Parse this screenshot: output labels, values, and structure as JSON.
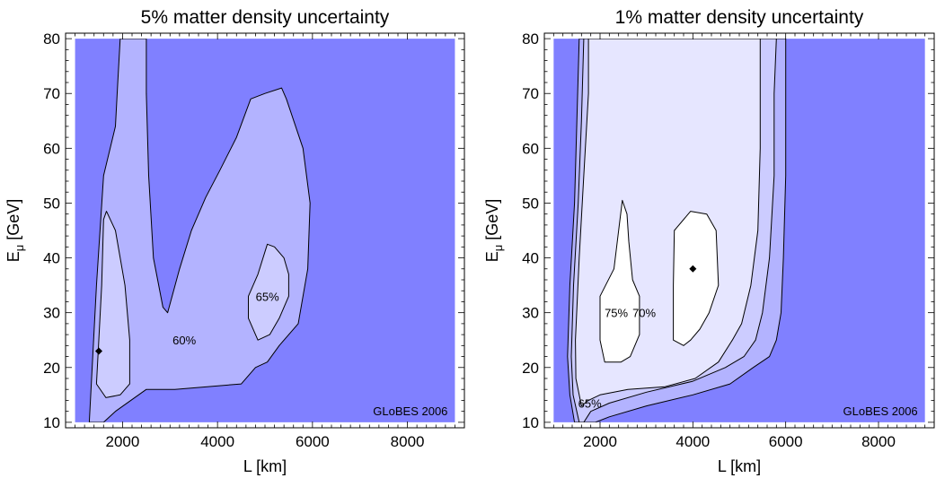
{
  "chart_data": [
    {
      "type": "contour",
      "title": "5% matter density uncertainty",
      "xlabel": "L [km]",
      "ylabel_main": "E",
      "ylabel_sub": "μ",
      "ylabel_unit": " [GeV]",
      "xlim": [
        800,
        9200
      ],
      "ylim": [
        9,
        81
      ],
      "xticks": [
        2000,
        4000,
        6000,
        8000
      ],
      "yticks": [
        10,
        20,
        30,
        40,
        50,
        60,
        70,
        80
      ],
      "x_minor_step": 200,
      "y_minor_step": 2,
      "plot_region": {
        "x": [
          1000,
          9000
        ],
        "y": [
          10,
          80
        ]
      },
      "background_color": "#8080ff",
      "watermark": "GLoBES 2006",
      "levels": [
        {
          "label": "60%",
          "fill": "#b3b3ff",
          "label_at": [
            3300,
            25
          ],
          "polygon": [
            [
              1300,
              10
            ],
            [
              1450,
              35
            ],
            [
              1600,
              55
            ],
            [
              1850,
              64
            ],
            [
              1900,
              72
            ],
            [
              1950,
              80
            ],
            [
              2500,
              80
            ],
            [
              2500,
              70
            ],
            [
              2550,
              55
            ],
            [
              2650,
              40
            ],
            [
              2850,
              31
            ],
            [
              2950,
              30
            ],
            [
              3200,
              38
            ],
            [
              3450,
              45
            ],
            [
              3750,
              51
            ],
            [
              4050,
              56
            ],
            [
              4400,
              62
            ],
            [
              4700,
              69
            ],
            [
              5000,
              70
            ],
            [
              5350,
              71
            ],
            [
              5450,
              69
            ],
            [
              5800,
              60
            ],
            [
              5950,
              50
            ],
            [
              5900,
              38
            ],
            [
              5700,
              28
            ],
            [
              5300,
              24
            ],
            [
              5050,
              21
            ],
            [
              4800,
              20
            ],
            [
              4500,
              17
            ],
            [
              3100,
              16
            ],
            [
              2500,
              16
            ],
            [
              1850,
              12
            ],
            [
              1600,
              10
            ]
          ]
        },
        {
          "label": "",
          "fill": "#ccccff",
          "label_at": null,
          "polygon": [
            [
              1450,
              17
            ],
            [
              1500,
              25
            ],
            [
              1560,
              35
            ],
            [
              1600,
              47
            ],
            [
              1660,
              48.5
            ],
            [
              1850,
              45
            ],
            [
              2050,
              35
            ],
            [
              2150,
              25
            ],
            [
              2150,
              17
            ],
            [
              1950,
              15
            ],
            [
              1650,
              14.5
            ]
          ]
        },
        {
          "label": "65%",
          "fill": "#ccccff",
          "label_at": [
            5050,
            33
          ],
          "polygon": [
            [
              4650,
              29
            ],
            [
              4650,
              33
            ],
            [
              4850,
              37
            ],
            [
              5050,
              42.5
            ],
            [
              5200,
              42
            ],
            [
              5400,
              40
            ],
            [
              5500,
              37
            ],
            [
              5500,
              33
            ],
            [
              5300,
              29
            ],
            [
              5100,
              26
            ],
            [
              4850,
              25
            ]
          ]
        }
      ],
      "best_fit_point": [
        1500,
        23
      ]
    },
    {
      "type": "contour",
      "title": "1% matter density uncertainty",
      "xlabel": "L [km]",
      "ylabel_main": "E",
      "ylabel_sub": "μ",
      "ylabel_unit": " [GeV]",
      "xlim": [
        800,
        9200
      ],
      "ylim": [
        9,
        81
      ],
      "xticks": [
        2000,
        4000,
        6000,
        8000
      ],
      "yticks": [
        10,
        20,
        30,
        40,
        50,
        60,
        70,
        80
      ],
      "x_minor_step": 200,
      "y_minor_step": 2,
      "plot_region": {
        "x": [
          1000,
          9000
        ],
        "y": [
          10,
          80
        ]
      },
      "background_color": "#8080ff",
      "watermark": "GLoBES 2006",
      "levels": [
        {
          "label": "",
          "fill": "#b3b3ff",
          "label_at": null,
          "polygon": [
            [
              1450,
              10
            ],
            [
              1350,
              15
            ],
            [
              1300,
              22
            ],
            [
              1350,
              35
            ],
            [
              1450,
              50
            ],
            [
              1500,
              65
            ],
            [
              1550,
              80
            ],
            [
              6000,
              80
            ],
            [
              6000,
              70
            ],
            [
              6000,
              55
            ],
            [
              5950,
              40
            ],
            [
              5900,
              30
            ],
            [
              5800,
              25
            ],
            [
              5650,
              22
            ],
            [
              5300,
              20
            ],
            [
              4800,
              17
            ],
            [
              4000,
              15
            ],
            [
              3000,
              13
            ],
            [
              2200,
              11
            ],
            [
              1900,
              10
            ]
          ]
        },
        {
          "label": "65%",
          "fill": "#ccccff",
          "label_at": [
            1780,
            13.5
          ],
          "polygon": [
            [
              1550,
              10
            ],
            [
              1420,
              15
            ],
            [
              1380,
              22
            ],
            [
              1430,
              35
            ],
            [
              1530,
              50
            ],
            [
              1600,
              65
            ],
            [
              1650,
              80
            ],
            [
              5800,
              80
            ],
            [
              5750,
              70
            ],
            [
              5750,
              55
            ],
            [
              5650,
              40
            ],
            [
              5500,
              30
            ],
            [
              5350,
              25
            ],
            [
              5100,
              22
            ],
            [
              4700,
              20
            ],
            [
              4000,
              17.5
            ],
            [
              3000,
              15.5
            ],
            [
              2200,
              13.5
            ],
            [
              1800,
              12
            ],
            [
              1650,
              10
            ]
          ]
        },
        {
          "label": "70%",
          "fill": "#e6e6ff",
          "label_at": [
            2950,
            30
          ],
          "polygon": [
            [
              1600,
              13
            ],
            [
              1480,
              18
            ],
            [
              1470,
              25
            ],
            [
              1550,
              40
            ],
            [
              1650,
              55
            ],
            [
              1750,
              70
            ],
            [
              1750,
              80
            ],
            [
              5450,
              80
            ],
            [
              5450,
              70
            ],
            [
              5450,
              60
            ],
            [
              5400,
              45
            ],
            [
              5250,
              35
            ],
            [
              5050,
              28
            ],
            [
              4850,
              25
            ],
            [
              4550,
              21
            ],
            [
              4050,
              18
            ],
            [
              3400,
              16.5
            ],
            [
              2600,
              16
            ],
            [
              2000,
              15
            ],
            [
              1750,
              14
            ]
          ]
        },
        {
          "label": "75%",
          "fill": "#ffffff",
          "label_at": [
            2350,
            30
          ],
          "polygon": [
            [
              2000,
              25
            ],
            [
              2000,
              33
            ],
            [
              2300,
              38
            ],
            [
              2400,
              45
            ],
            [
              2480,
              50.5
            ],
            [
              2580,
              48
            ],
            [
              2620,
              43
            ],
            [
              2700,
              36
            ],
            [
              2850,
              33
            ],
            [
              2850,
              26
            ],
            [
              2650,
              22
            ],
            [
              2450,
              21
            ],
            [
              2100,
              21
            ]
          ]
        },
        {
          "label": "",
          "fill": "#ffffff",
          "label_at": null,
          "polygon": [
            [
              3580,
              25
            ],
            [
              3580,
              35
            ],
            [
              3600,
              45
            ],
            [
              3950,
              48.5
            ],
            [
              4300,
              48
            ],
            [
              4500,
              45
            ],
            [
              4550,
              35
            ],
            [
              4350,
              30
            ],
            [
              4150,
              27
            ],
            [
              3950,
              25
            ],
            [
              3800,
              24
            ]
          ]
        }
      ],
      "best_fit_point": [
        4000,
        38
      ]
    }
  ]
}
